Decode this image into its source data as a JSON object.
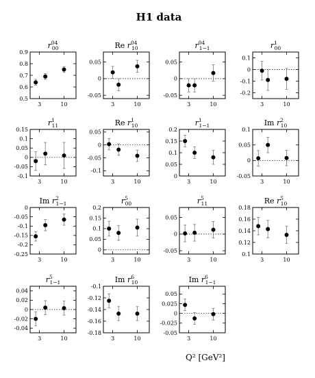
{
  "figure_title": "H1 data",
  "x_axis_title": "Q² [GeV²]",
  "chart_data": [
    {
      "type": "scatter",
      "title": "r00 04",
      "label": {
        "pre": "",
        "main": "r",
        "sup": "04",
        "sub": "00"
      },
      "x": [
        2.5,
        4,
        10
      ],
      "y": [
        0.64,
        0.69,
        0.75
      ],
      "yerr": [
        0.025,
        0.025,
        0.025
      ],
      "ylim": [
        0.5,
        0.9
      ],
      "yticks": [
        "0.9",
        "0.8",
        "0.7",
        "0.6",
        "0.5"
      ],
      "reference": null,
      "xticks": [
        "3",
        "10"
      ]
    },
    {
      "type": "scatter",
      "title": "Re r10 04",
      "label": {
        "pre": "Re ",
        "main": "r",
        "sup": "04",
        "sub": "10"
      },
      "x": [
        3,
        4,
        10
      ],
      "y": [
        0.019,
        -0.018,
        0.037
      ],
      "yerr": [
        0.018,
        0.018,
        0.018
      ],
      "ylim": [
        -0.06,
        0.08
      ],
      "yticks": [
        "0.05",
        "0",
        "-0.05"
      ],
      "reference": 0,
      "xticks": [
        "3",
        "10"
      ]
    },
    {
      "type": "scatter",
      "title": "r1-1 04",
      "label": {
        "pre": "",
        "main": "r",
        "sup": "04",
        "sub": "1−1"
      },
      "x": [
        3,
        4,
        10
      ],
      "y": [
        -0.02,
        -0.02,
        0.017
      ],
      "yerr": [
        0.02,
        0.02,
        0.025
      ],
      "ylim": [
        -0.06,
        0.08
      ],
      "yticks": [
        "0.05",
        "0",
        "-0.05"
      ],
      "reference": 0,
      "xticks": [
        "3",
        "10"
      ]
    },
    {
      "type": "scatter",
      "title": "r00 1",
      "label": {
        "pre": "",
        "main": "r",
        "sup": "1",
        "sub": "00"
      },
      "x": [
        3,
        4,
        10
      ],
      "y": [
        -0.01,
        -0.09,
        -0.08
      ],
      "yerr": [
        0.08,
        0.09,
        0.09
      ],
      "ylim": [
        -0.25,
        0.15
      ],
      "yticks": [
        "0.1",
        "0",
        "-0.1",
        "-0.2"
      ],
      "reference": 0,
      "xticks": [
        "3",
        "10"
      ]
    },
    {
      "type": "scatter",
      "title": "r11 1",
      "label": {
        "pre": "",
        "main": "r",
        "sup": "1",
        "sub": "11"
      },
      "x": [
        2.5,
        4,
        10
      ],
      "y": [
        -0.02,
        0.02,
        0.01
      ],
      "yerr": [
        0.05,
        0.06,
        0.07
      ],
      "ylim": [
        -0.1,
        0.15
      ],
      "yticks": [
        "0.15",
        "0.1",
        "0.05",
        "0",
        "-0.05",
        "-0.1"
      ],
      "reference": 0,
      "xticks": [
        "3",
        "10"
      ]
    },
    {
      "type": "scatter",
      "title": "Re r10 1",
      "label": {
        "pre": "Re ",
        "main": "r",
        "sup": "1",
        "sub": "10"
      },
      "x": [
        2.5,
        4,
        10
      ],
      "y": [
        0.003,
        -0.018,
        -0.042
      ],
      "yerr": [
        0.022,
        0.022,
        0.022
      ],
      "ylim": [
        -0.12,
        0.06
      ],
      "yticks": [
        "0.05",
        "0",
        "-0.05",
        "-0.1"
      ],
      "reference": 0,
      "xticks": [
        "3",
        "10"
      ]
    },
    {
      "type": "scatter",
      "title": "r1-1 1",
      "label": {
        "pre": "",
        "main": "r",
        "sup": "1",
        "sub": "1−1"
      },
      "x": [
        2.5,
        4,
        10
      ],
      "y": [
        0.15,
        0.1,
        0.08
      ],
      "yerr": [
        0.025,
        0.025,
        0.03
      ],
      "ylim": [
        0,
        0.2
      ],
      "yticks": [
        "0.2",
        "0.15",
        "0.1",
        "0.05",
        "0"
      ],
      "reference": null,
      "xticks": [
        "3",
        "10"
      ]
    },
    {
      "type": "scatter",
      "title": "Im r10 2",
      "label": {
        "pre": "Im ",
        "main": "r",
        "sup": "2",
        "sub": "10"
      },
      "x": [
        2.5,
        4,
        10
      ],
      "y": [
        0.007,
        0.05,
        0.008
      ],
      "yerr": [
        0.025,
        0.025,
        0.025
      ],
      "ylim": [
        -0.05,
        0.1
      ],
      "yticks": [
        "0.1",
        "0.05",
        "0",
        "-0.05"
      ],
      "reference": 0,
      "xticks": [
        "3",
        "10"
      ]
    },
    {
      "type": "scatter",
      "title": "Im r1-1 2",
      "label": {
        "pre": "Im ",
        "main": "r",
        "sup": "2",
        "sub": "1−1"
      },
      "x": [
        2.5,
        4,
        10
      ],
      "y": [
        -0.155,
        -0.095,
        -0.065
      ],
      "yerr": [
        0.025,
        0.03,
        0.03
      ],
      "ylim": [
        -0.25,
        0
      ],
      "yticks": [
        "0",
        "-0.05",
        "-0.1",
        "-0.15",
        "-0.2",
        "-0.25"
      ],
      "reference": null,
      "xticks": [
        "3",
        "10"
      ]
    },
    {
      "type": "scatter",
      "title": "r00 5",
      "label": {
        "pre": "",
        "main": "r",
        "sup": "5",
        "sub": "00"
      },
      "x": [
        2.5,
        4,
        10
      ],
      "y": [
        0.1,
        0.08,
        0.105
      ],
      "yerr": [
        0.035,
        0.035,
        0.04
      ],
      "ylim": [
        -0.02,
        0.2
      ],
      "yticks": [
        "0.2",
        "0.15",
        "0.1",
        "0.05",
        "0"
      ],
      "reference": 0,
      "xticks": [
        "3",
        "10"
      ]
    },
    {
      "type": "scatter",
      "title": "r11 5",
      "label": {
        "pre": "",
        "main": "r",
        "sup": "5",
        "sub": "11"
      },
      "x": [
        2.5,
        4,
        10
      ],
      "y": [
        0.002,
        0.004,
        0.013
      ],
      "yerr": [
        0.025,
        0.025,
        0.025
      ],
      "ylim": [
        -0.06,
        0.08
      ],
      "yticks": [
        "0.05",
        "0",
        "-0.05"
      ],
      "reference": 0,
      "xticks": [
        "3",
        "10"
      ]
    },
    {
      "type": "scatter",
      "title": "Re r10 5",
      "label": {
        "pre": "Re ",
        "main": "r",
        "sup": "5",
        "sub": "10"
      },
      "x": [
        2.5,
        4,
        10
      ],
      "y": [
        0.148,
        0.143,
        0.133
      ],
      "yerr": [
        0.015,
        0.015,
        0.015
      ],
      "ylim": [
        0.1,
        0.18
      ],
      "yticks": [
        "0.18",
        "0.16",
        "0.14",
        "0.12",
        "0.1"
      ],
      "reference": null,
      "xticks": [
        "3",
        "10"
      ]
    },
    {
      "type": "scatter",
      "title": "r1-1 5",
      "label": {
        "pre": "",
        "main": "r",
        "sup": "5",
        "sub": "1−1"
      },
      "x": [
        2.5,
        4,
        10
      ],
      "y": [
        -0.02,
        0.004,
        0.003
      ],
      "yerr": [
        0.015,
        0.015,
        0.015
      ],
      "ylim": [
        -0.05,
        0.05
      ],
      "yticks": [
        "0.04",
        "0.02",
        "0",
        "-0.02",
        "-0.04"
      ],
      "reference": 0,
      "xticks": [
        "3",
        "10"
      ]
    },
    {
      "type": "scatter",
      "title": "Im r10 6",
      "label": {
        "pre": "Im ",
        "main": "r",
        "sup": "6",
        "sub": "10"
      },
      "x": [
        2.5,
        4,
        10
      ],
      "y": [
        -0.125,
        -0.147,
        -0.147
      ],
      "yerr": [
        0.012,
        0.012,
        0.012
      ],
      "ylim": [
        -0.18,
        -0.1
      ],
      "yticks": [
        "-0.1",
        "-0.12",
        "-0.14",
        "-0.16",
        "-0.18"
      ],
      "reference": null,
      "xticks": [
        "3",
        "10"
      ]
    },
    {
      "type": "scatter",
      "title": "Im r1-1 6",
      "label": {
        "pre": "Im ",
        "main": "r",
        "sup": "6",
        "sub": "1−1"
      },
      "x": [
        2.5,
        4,
        10
      ],
      "y": [
        0.022,
        -0.013,
        -0.002
      ],
      "yerr": [
        0.015,
        0.015,
        0.015
      ],
      "ylim": [
        -0.05,
        0.07
      ],
      "yticks": [
        "0.05",
        "0.025",
        "0",
        "-0.025",
        "-0.05"
      ],
      "reference": 0,
      "xticks": [
        "3",
        "10"
      ]
    }
  ]
}
